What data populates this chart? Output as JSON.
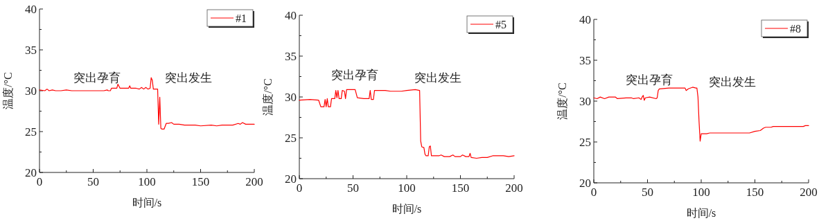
{
  "chart_data": [
    {
      "type": "line",
      "xlabel": "时间/s",
      "ylabel": "温度/°C",
      "xlim": [
        0,
        200
      ],
      "ylim": [
        20,
        40
      ],
      "xticks": [
        0,
        50,
        100,
        150,
        200
      ],
      "yticks": [
        20,
        25,
        30,
        35,
        40
      ],
      "legend": "top right",
      "annotations": [
        "突出孕育",
        "突出发生"
      ],
      "series": [
        {
          "name": "#1",
          "color": "#ff0000",
          "x": [
            0,
            5,
            7,
            9,
            12,
            15,
            20,
            25,
            30,
            60,
            63,
            64,
            66,
            67,
            72,
            73,
            75,
            83,
            84,
            85,
            90,
            93,
            95,
            97,
            99,
            101,
            103,
            104,
            105,
            106,
            110,
            111,
            112,
            113,
            114,
            116,
            118,
            120,
            123,
            125,
            130,
            135,
            140,
            145,
            150,
            160,
            165,
            170,
            180,
            185,
            187,
            189,
            192,
            195,
            200
          ],
          "values": [
            30.1,
            30.0,
            30.2,
            30.0,
            30.1,
            30.0,
            30.0,
            30.1,
            30.0,
            30.0,
            30.1,
            30.0,
            30.0,
            30.3,
            30.3,
            30.8,
            30.3,
            30.3,
            30.6,
            30.3,
            30.3,
            30.2,
            30.4,
            30.2,
            30.4,
            30.2,
            30.3,
            31.6,
            31.3,
            30.2,
            30.2,
            25.9,
            29.2,
            25.4,
            25.3,
            25.3,
            26.0,
            26.0,
            26.1,
            25.9,
            25.9,
            25.8,
            25.8,
            25.8,
            25.7,
            25.8,
            25.7,
            25.8,
            25.8,
            26.0,
            25.9,
            26.1,
            25.9,
            25.9,
            25.9
          ]
        }
      ]
    },
    {
      "type": "line",
      "xlabel": "时间/s",
      "ylabel": "温度/°C",
      "xlim": [
        0,
        200
      ],
      "ylim": [
        20,
        40
      ],
      "xticks": [
        0,
        50,
        100,
        150,
        200
      ],
      "yticks": [
        20,
        25,
        30,
        35,
        40
      ],
      "legend": "top right",
      "annotations": [
        "突出孕育",
        "突出发生"
      ],
      "series": [
        {
          "name": "#5",
          "color": "#ff0000",
          "x": [
            0,
            10,
            18,
            20,
            23,
            24,
            25,
            26,
            27,
            29,
            30,
            33,
            34,
            35,
            36,
            37,
            39,
            40,
            42,
            43,
            44,
            52,
            54,
            60,
            65,
            66,
            67,
            69,
            70,
            80,
            85,
            95,
            100,
            108,
            112,
            113,
            114,
            116,
            117,
            118,
            120,
            121,
            122,
            123,
            130,
            132,
            135,
            140,
            143,
            145,
            150,
            152,
            155,
            158,
            159,
            160,
            165,
            170,
            175,
            180,
            190,
            195,
            200
          ],
          "values": [
            29.6,
            29.7,
            29.6,
            28.8,
            28.8,
            29.7,
            28.8,
            29.8,
            28.8,
            28.8,
            29.8,
            29.8,
            30.8,
            29.9,
            30.8,
            29.8,
            29.8,
            30.8,
            30.7,
            29.8,
            30.9,
            30.9,
            29.9,
            29.8,
            29.8,
            30.8,
            29.7,
            29.7,
            30.8,
            30.8,
            30.7,
            30.7,
            30.8,
            30.9,
            30.8,
            24.6,
            23.9,
            23.8,
            23.0,
            22.8,
            22.8,
            23.9,
            24.0,
            22.8,
            22.8,
            22.9,
            22.7,
            22.7,
            22.9,
            22.7,
            22.7,
            22.9,
            22.7,
            22.7,
            23.1,
            22.6,
            22.5,
            22.6,
            22.6,
            22.8,
            22.8,
            22.7,
            22.8
          ]
        }
      ]
    },
    {
      "type": "line",
      "xlabel": "时间/s",
      "ylabel": "温度/°C",
      "xlim": [
        0,
        200
      ],
      "ylim": [
        20,
        40
      ],
      "xticks": [
        0,
        50,
        100,
        150,
        200
      ],
      "yticks": [
        20,
        25,
        30,
        35,
        40
      ],
      "legend": "top right",
      "annotations": [
        "突出孕育",
        "突出发生"
      ],
      "series": [
        {
          "name": "#8",
          "color": "#ff0000",
          "x": [
            0,
            3,
            6,
            10,
            14,
            20,
            22,
            30,
            35,
            37,
            42,
            44,
            45,
            46,
            47,
            48,
            52,
            58,
            59,
            60,
            61,
            70,
            80,
            85,
            86,
            88,
            92,
            95,
            96,
            97,
            98,
            99,
            100,
            105,
            108,
            145,
            150,
            155,
            158,
            160,
            165,
            167,
            195,
            197,
            200
          ],
          "values": [
            30.4,
            30.3,
            30.5,
            30.3,
            30.5,
            30.5,
            30.3,
            30.4,
            30.4,
            30.3,
            30.4,
            30.2,
            30.5,
            30.7,
            30.1,
            30.4,
            30.5,
            30.3,
            30.4,
            31.3,
            31.5,
            31.6,
            31.6,
            31.6,
            31.3,
            31.5,
            31.7,
            31.6,
            31.6,
            30.5,
            27.5,
            25.1,
            26.0,
            26.0,
            26.1,
            26.1,
            26.3,
            26.4,
            26.7,
            26.8,
            26.8,
            26.9,
            26.9,
            27.0,
            27.0
          ]
        }
      ]
    }
  ]
}
